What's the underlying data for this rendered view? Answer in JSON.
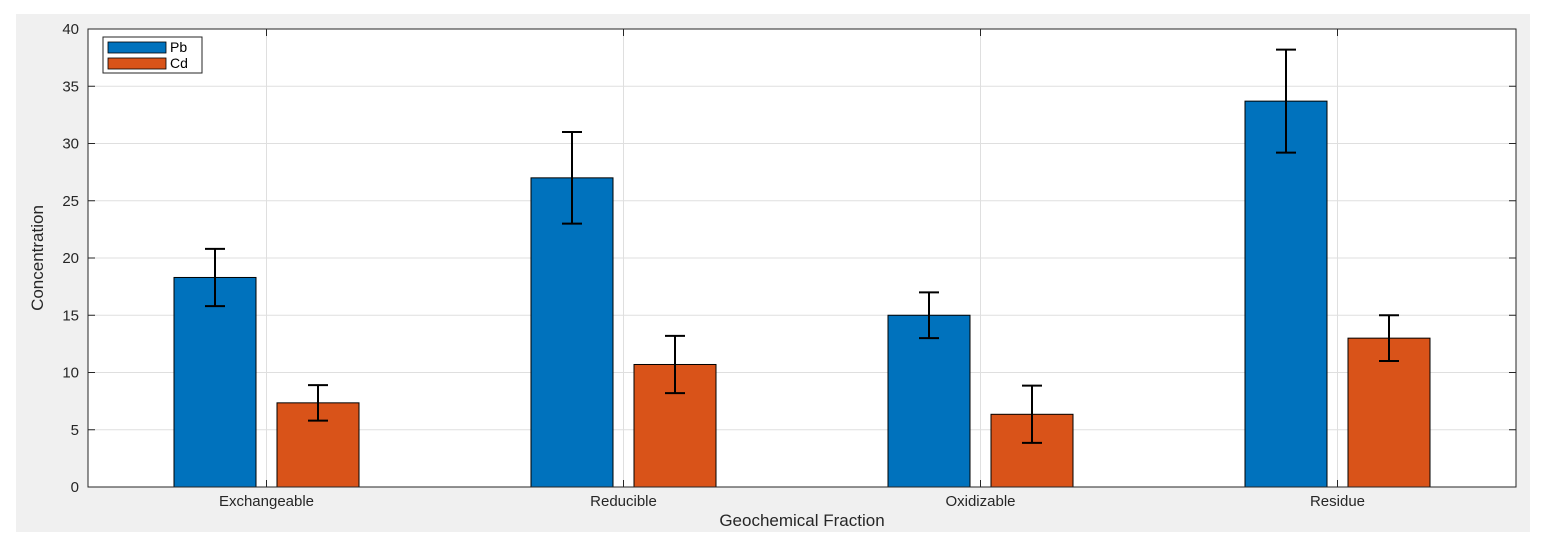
{
  "chart_data": {
    "type": "bar",
    "xlabel": "Geochemical Fraction",
    "ylabel": "Concentration",
    "categories": [
      "Exchangeable",
      "Reducible",
      "Oxidizable",
      "Residue"
    ],
    "ylim": [
      0,
      40
    ],
    "yticks": [
      0,
      5,
      10,
      15,
      20,
      25,
      30,
      35,
      40
    ],
    "grid": true,
    "legend_position": "top-left",
    "series": [
      {
        "name": "Pb",
        "color": "#0072BD",
        "values": [
          18.3,
          27.0,
          15.0,
          33.7
        ],
        "errors": [
          2.5,
          4.0,
          2.0,
          4.5
        ]
      },
      {
        "name": "Cd",
        "color": "#D95319",
        "values": [
          7.35,
          10.7,
          6.35,
          13.0
        ],
        "errors": [
          1.55,
          2.5,
          2.5,
          2.0
        ]
      }
    ]
  }
}
